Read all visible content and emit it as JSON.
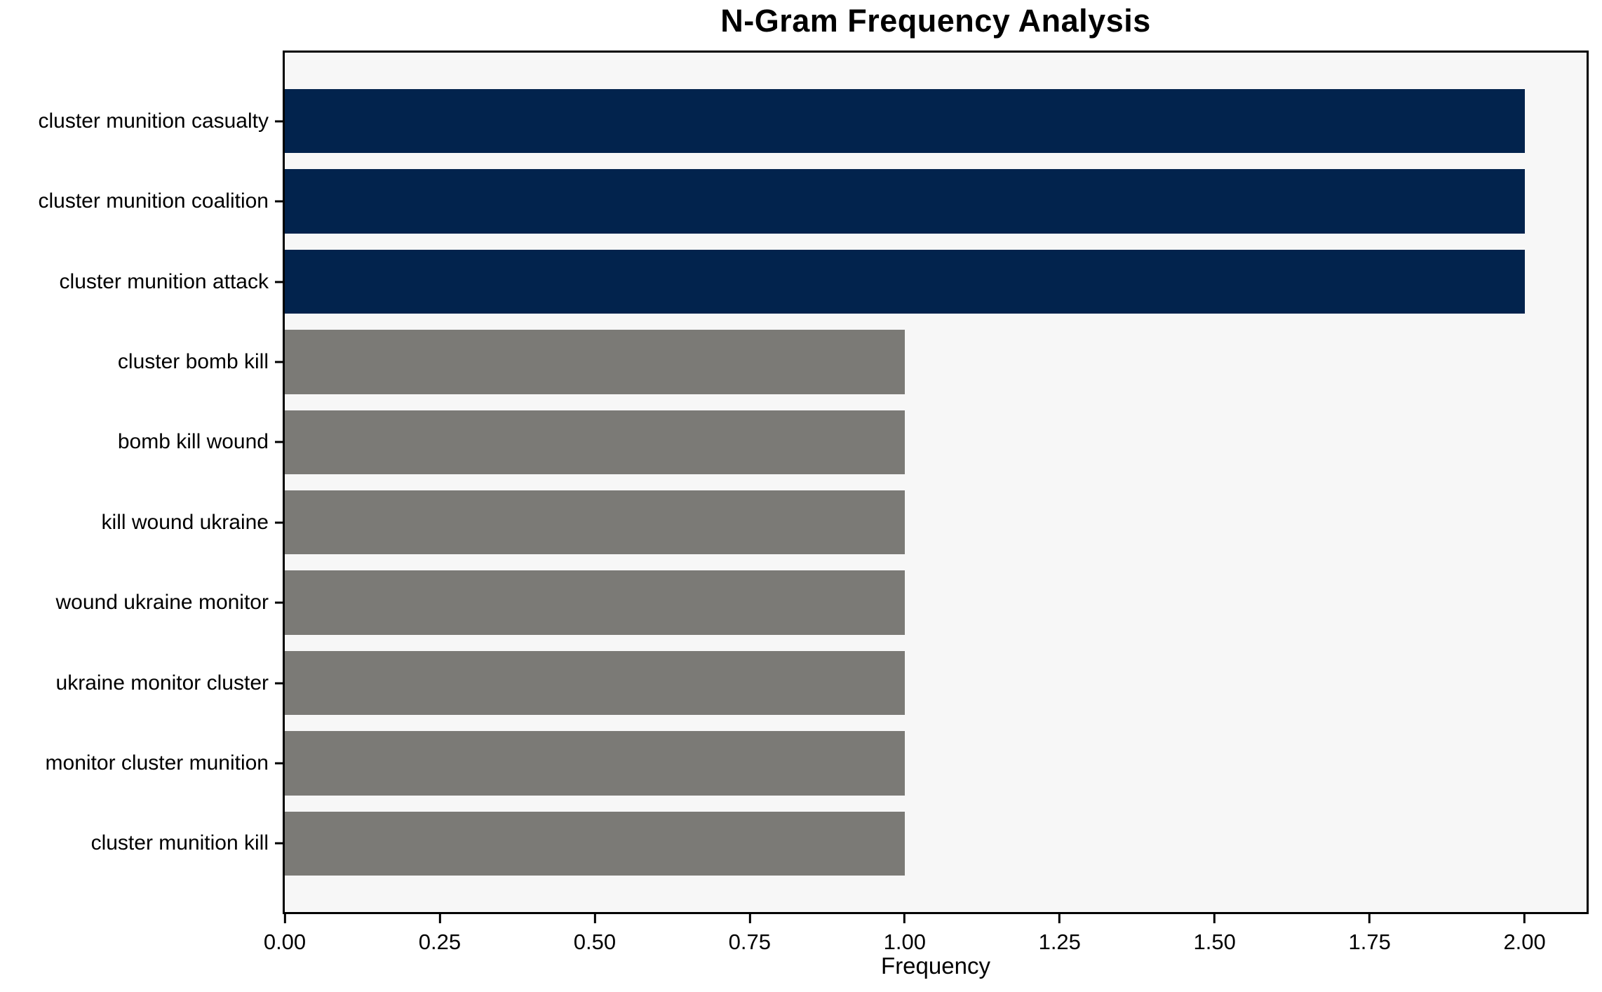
{
  "chart_data": {
    "type": "bar",
    "orientation": "horizontal",
    "title": "N-Gram Frequency Analysis",
    "xlabel": "Frequency",
    "ylabel": "",
    "xlim": [
      0,
      2.1
    ],
    "xticks": [
      "0.00",
      "0.25",
      "0.50",
      "0.75",
      "1.00",
      "1.25",
      "1.50",
      "1.75",
      "2.00"
    ],
    "grid": false,
    "legend": null,
    "categories": [
      "cluster munition casualty",
      "cluster munition coalition",
      "cluster munition attack",
      "cluster bomb kill",
      "bomb kill wound",
      "kill wound ukraine",
      "wound ukraine monitor",
      "ukraine monitor cluster",
      "monitor cluster munition",
      "cluster munition kill"
    ],
    "values": [
      2,
      2,
      2,
      1,
      1,
      1,
      1,
      1,
      1,
      1
    ],
    "bar_colors": [
      "#02234d",
      "#02234d",
      "#02234d",
      "#7b7a76",
      "#7b7a76",
      "#7b7a76",
      "#7b7a76",
      "#7b7a76",
      "#7b7a76",
      "#7b7a76"
    ],
    "colors": {
      "highlight": "#02234d",
      "default": "#7b7a76",
      "plot_background": "#f7f7f7",
      "page_background": "#ffffff",
      "axis": "#000000",
      "text": "#000000"
    }
  }
}
